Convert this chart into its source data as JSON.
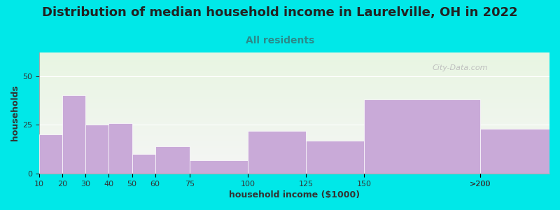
{
  "title": "Distribution of median household income in Laurelville, OH in 2022",
  "subtitle": "All residents",
  "xlabel": "household income ($1000)",
  "ylabel": "households",
  "bin_edges": [
    10,
    20,
    30,
    40,
    50,
    60,
    75,
    100,
    125,
    150,
    200
  ],
  "last_label": ">200",
  "values": [
    20,
    40,
    25,
    26,
    10,
    14,
    7,
    22,
    17,
    38,
    23
  ],
  "bar_color": "#c9aad8",
  "background_color": "#00e8e8",
  "plot_bg_top": "#e8f5e2",
  "plot_bg_bottom": "#f5f5f5",
  "ylim": [
    0,
    62
  ],
  "yticks": [
    0,
    25,
    50
  ],
  "title_fontsize": 13,
  "title_color": "#222222",
  "subtitle_fontsize": 10,
  "subtitle_color": "#2a8a8a",
  "axis_label_fontsize": 9,
  "tick_fontsize": 8,
  "watermark_text": "City-Data.com",
  "watermark_color": "#bbbbbb"
}
